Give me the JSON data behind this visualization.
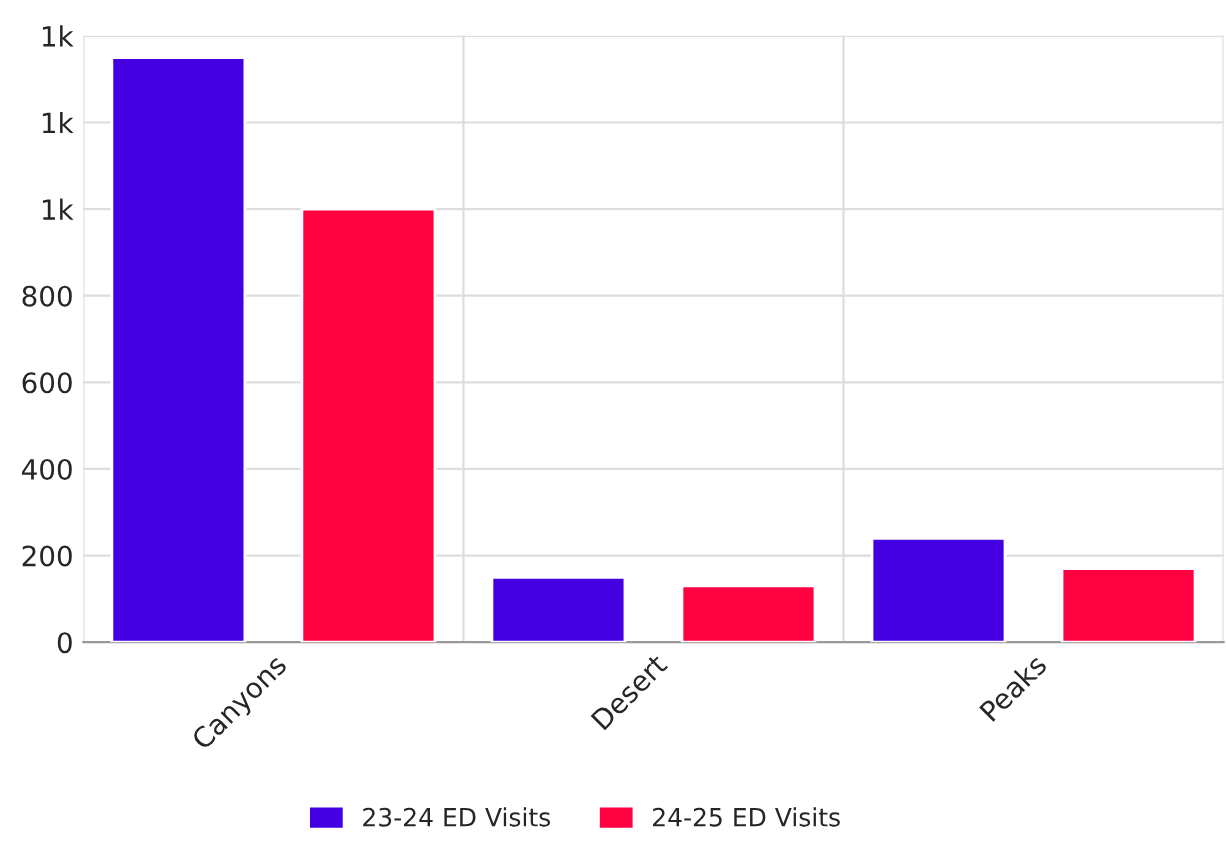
{
  "chart_data": {
    "type": "bar",
    "categories": [
      "Canyons",
      "Desert",
      "Peaks"
    ],
    "series": [
      {
        "name": "23-24 ED Visits",
        "color": "#4400e0",
        "values": [
          1350,
          150,
          240
        ]
      },
      {
        "name": "24-25 ED Visits",
        "color": "#ff0040",
        "values": [
          1000,
          130,
          170
        ]
      }
    ],
    "ylim": [
      0,
      1400
    ],
    "yticks": [
      0,
      200,
      400,
      600,
      800,
      {
        "value": 1000,
        "label": "1k"
      },
      {
        "value": 1200,
        "label": "1k"
      },
      {
        "value": 1400,
        "label": "1k"
      }
    ],
    "grid": true,
    "legend": "bottom"
  }
}
